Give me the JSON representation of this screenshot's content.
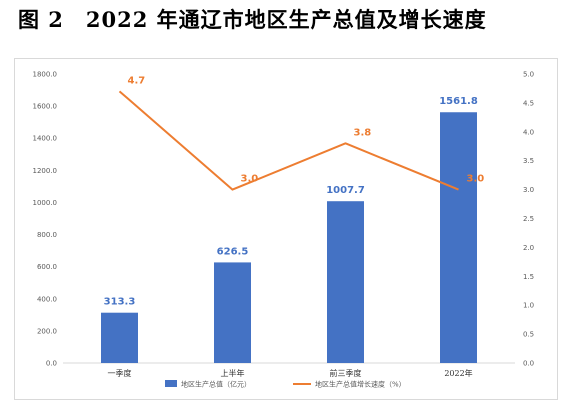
{
  "figure": {
    "title": "图 2　2022 年通辽市地区生产总值及增长速度"
  },
  "colors": {
    "bar": "#4472c4",
    "line": "#ed7d31",
    "axis": "#d9d9d9"
  },
  "chart_data": {
    "type": "bar",
    "categories": [
      "一季度",
      "上半年",
      "前三季度",
      "2022年"
    ],
    "series": [
      {
        "name": "地区生产总值（亿元）",
        "type": "bar",
        "axis": "left",
        "values": [
          313.3,
          626.5,
          1007.7,
          1561.8
        ],
        "labels": [
          "313.3",
          "626.5",
          "1007.7",
          "1561.8"
        ]
      },
      {
        "name": "地区生产总值增长速度（%）",
        "type": "line",
        "axis": "right",
        "values": [
          4.7,
          3.0,
          3.8,
          3.0
        ],
        "labels": [
          "4.7",
          "3.0",
          "3.8",
          "3.0"
        ]
      }
    ],
    "y_left": {
      "range": [
        0,
        1800
      ],
      "ticks": [
        "0.0",
        "200.0",
        "400.0",
        "600.0",
        "800.0",
        "1000.0",
        "1200.0",
        "1400.0",
        "1600.0",
        "1800.0"
      ]
    },
    "y_right": {
      "range": [
        0,
        5
      ],
      "ticks": [
        "0.0",
        "0.5",
        "1.0",
        "1.5",
        "2.0",
        "2.5",
        "3.0",
        "3.5",
        "4.0",
        "4.5",
        "5.0"
      ]
    },
    "grid": false,
    "legend_position": "bottom"
  }
}
